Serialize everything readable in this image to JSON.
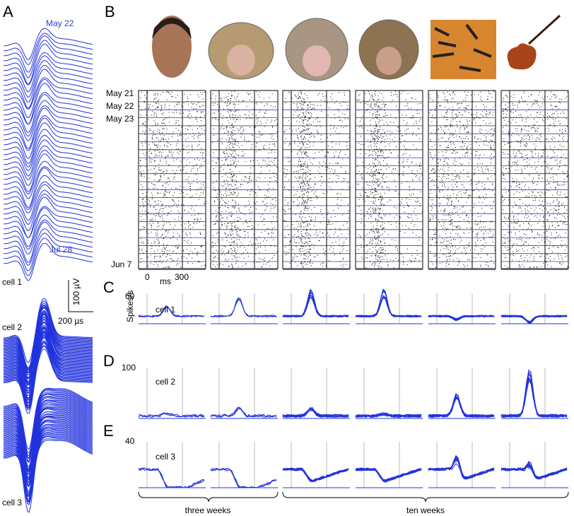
{
  "panel_a": {
    "label": "A",
    "date_top": "May 22",
    "date_bottom": "Jul 28",
    "cell1": "cell 1",
    "scale_uv": "100 µV",
    "scale_us": "200 µs",
    "cell2": "cell 2",
    "cell3": "cell 3"
  },
  "panel_b": {
    "label": "B",
    "dates": [
      "May 21",
      "May 22",
      "May 23",
      "Jun 7"
    ],
    "x_zero": "0",
    "x_unit": "ms",
    "x_300": "300"
  },
  "panel_c": {
    "label": "C",
    "ytick": "60",
    "ylabel": "Spikes/s",
    "cell": "cell 1"
  },
  "panel_d": {
    "label": "D",
    "ytick": "100",
    "cell": "cell 2"
  },
  "panel_e": {
    "label": "E",
    "ytick": "40",
    "cell": "cell 3"
  },
  "brackets": [
    "three weeks",
    "ten weeks"
  ]
}
